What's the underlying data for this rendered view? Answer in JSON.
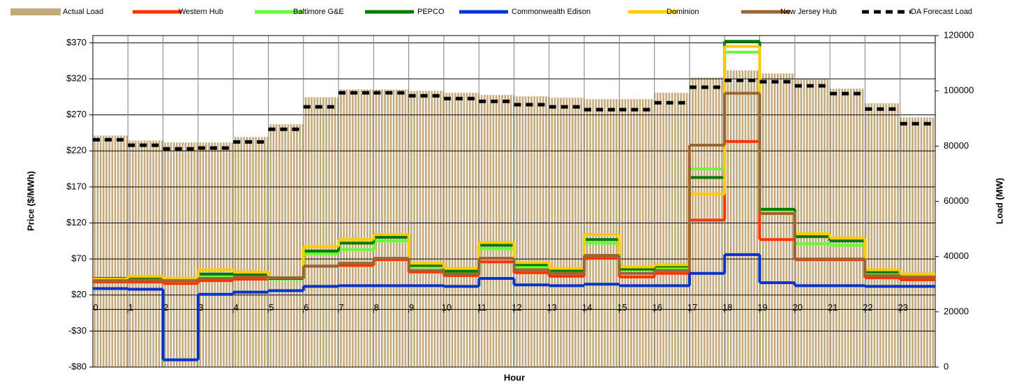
{
  "chart_data": {
    "type": "combo",
    "xlabel": "Hour",
    "ylabel": "Price ($/MWh)",
    "y2label": "Load (MW)",
    "x": [
      0,
      1,
      2,
      3,
      4,
      5,
      6,
      7,
      8,
      9,
      10,
      11,
      12,
      13,
      14,
      15,
      16,
      17,
      18,
      19,
      20,
      21,
      22,
      23
    ],
    "xlim": [
      0,
      24
    ],
    "xticks": [
      0,
      1,
      2,
      3,
      4,
      5,
      6,
      7,
      8,
      9,
      10,
      11,
      12,
      13,
      14,
      15,
      16,
      17,
      18,
      19,
      20,
      21,
      22,
      23
    ],
    "ylim": [
      -80,
      380
    ],
    "yticks": [
      {
        "value": -80,
        "label": "-$80"
      },
      {
        "value": -30,
        "label": "-$30"
      },
      {
        "value": 20,
        "label": "$20"
      },
      {
        "value": 70,
        "label": "$70"
      },
      {
        "value": 120,
        "label": "$120"
      },
      {
        "value": 170,
        "label": "$170"
      },
      {
        "value": 220,
        "label": "$220"
      },
      {
        "value": 270,
        "label": "$270"
      },
      {
        "value": 320,
        "label": "$320"
      },
      {
        "value": 370,
        "label": "$370"
      }
    ],
    "y2lim": [
      0,
      120000
    ],
    "y2ticks": [
      0,
      20000,
      40000,
      60000,
      80000,
      100000,
      120000
    ],
    "grid": true,
    "legend": "top",
    "series": [
      {
        "name": "Actual Load",
        "type": "bar",
        "axis": "y2",
        "color": "#c4a97a",
        "values": [
          83800,
          82000,
          81300,
          81300,
          83300,
          87900,
          97700,
          100500,
          100500,
          100000,
          99300,
          98500,
          98000,
          97500,
          97000,
          97000,
          99300,
          104800,
          107400,
          106300,
          104300,
          100800,
          95500,
          90400
        ]
      },
      {
        "name": "Western Hub",
        "type": "step",
        "color": "#ff3300",
        "values": [
          38,
          38,
          36,
          40,
          42,
          42,
          60,
          61,
          69,
          52,
          47,
          66,
          51,
          46,
          71,
          45,
          50,
          124,
          233,
          97,
          69,
          69,
          44,
          41
        ]
      },
      {
        "name": "Baltimore G&E",
        "type": "step",
        "color": "#66ff33",
        "values": [
          40,
          42,
          40,
          47,
          46,
          42,
          77,
          83,
          95,
          59,
          52,
          84,
          59,
          52,
          92,
          55,
          58,
          195,
          357,
          135,
          91,
          89,
          51,
          46
        ]
      },
      {
        "name": "PEPCO",
        "type": "step",
        "color": "#007a00",
        "values": [
          43,
          44,
          42,
          49,
          48,
          43,
          81,
          92,
          100,
          61,
          53,
          89,
          62,
          54,
          97,
          56,
          60,
          183,
          372,
          139,
          101,
          95,
          52,
          45
        ]
      },
      {
        "name": "Commonwealth Edison",
        "type": "step",
        "color": "#0033cc",
        "values": [
          29,
          28,
          -70,
          21,
          24,
          26,
          32,
          33,
          33,
          33,
          32,
          43,
          34,
          33,
          35,
          33,
          33,
          50,
          76,
          37,
          33,
          33,
          32,
          32
        ]
      },
      {
        "name": "Dominion",
        "type": "step",
        "color": "#ffcc00",
        "values": [
          42,
          46,
          43,
          55,
          52,
          44,
          87,
          97,
          104,
          64,
          57,
          93,
          65,
          57,
          104,
          59,
          62,
          160,
          365,
          134,
          105,
          99,
          55,
          49
        ]
      },
      {
        "name": "New Jersey Hub",
        "type": "step",
        "color": "#996633",
        "values": [
          40,
          41,
          40,
          43,
          45,
          44,
          60,
          64,
          71,
          54,
          49,
          71,
          55,
          50,
          75,
          50,
          54,
          228,
          300,
          133,
          70,
          70,
          47,
          45
        ]
      },
      {
        "name": "DA Forecast Load",
        "type": "step",
        "axis": "y2",
        "dashed": true,
        "color": "#000000",
        "values": [
          82300,
          80300,
          79000,
          79300,
          81500,
          86100,
          94200,
          99300,
          99300,
          98200,
          97200,
          96200,
          95000,
          94200,
          93200,
          93200,
          95700,
          101300,
          103800,
          103300,
          101800,
          99000,
          93400,
          88100
        ]
      }
    ]
  }
}
